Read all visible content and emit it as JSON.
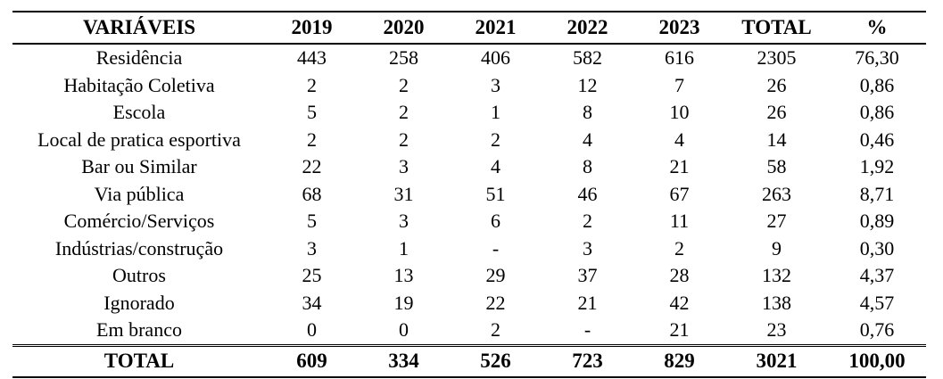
{
  "table": {
    "headers": [
      "VARIÁVEIS",
      "2019",
      "2020",
      "2021",
      "2022",
      "2023",
      "TOTAL",
      "%"
    ],
    "rows": [
      [
        "Residência",
        "443",
        "258",
        "406",
        "582",
        "616",
        "2305",
        "76,30"
      ],
      [
        "Habitação Coletiva",
        "2",
        "2",
        "3",
        "12",
        "7",
        "26",
        "0,86"
      ],
      [
        "Escola",
        "5",
        "2",
        "1",
        "8",
        "10",
        "26",
        "0,86"
      ],
      [
        "Local de pratica esportiva",
        "2",
        "2",
        "2",
        "4",
        "4",
        "14",
        "0,46"
      ],
      [
        "Bar ou Similar",
        "22",
        "3",
        "4",
        "8",
        "21",
        "58",
        "1,92"
      ],
      [
        "Via pública",
        "68",
        "31",
        "51",
        "46",
        "67",
        "263",
        "8,71"
      ],
      [
        "Comércio/Serviços",
        "5",
        "3",
        "6",
        "2",
        "11",
        "27",
        "0,89"
      ],
      [
        "Indústrias/construção",
        "3",
        "1",
        "-",
        "3",
        "2",
        "9",
        "0,30"
      ],
      [
        "Outros",
        "25",
        "13",
        "29",
        "37",
        "28",
        "132",
        "4,37"
      ],
      [
        "Ignorado",
        "34",
        "19",
        "22",
        "21",
        "42",
        "138",
        "4,57"
      ],
      [
        "Em branco",
        "0",
        "0",
        "2",
        "-",
        "21",
        "23",
        "0,76"
      ]
    ],
    "total_row": [
      "TOTAL",
      "609",
      "334",
      "526",
      "723",
      "829",
      "3021",
      "100,00"
    ]
  }
}
